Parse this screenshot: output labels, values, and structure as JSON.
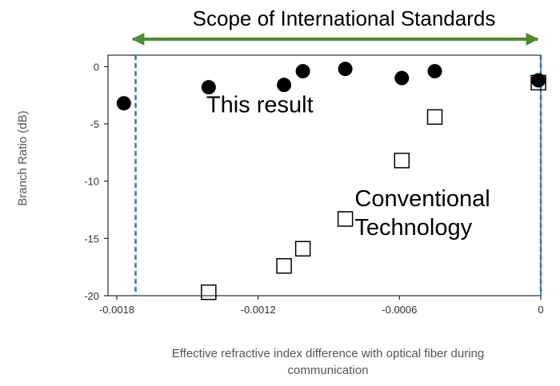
{
  "chart_data": {
    "type": "scatter",
    "banner": "Scope of International Standards",
    "ylabel": "Branch Ratio (dB)",
    "xlabel_lines": [
      "Effective refractive index difference with optical fiber during",
      "communication"
    ],
    "xlim": [
      -0.0018,
      0
    ],
    "ylim": [
      -20,
      1
    ],
    "xticks": [
      {
        "value": -0.0018,
        "label": "-0.0018"
      },
      {
        "value": -0.0012,
        "label": "-0.0012"
      },
      {
        "value": -0.0006,
        "label": "-0.0006"
      },
      {
        "value": 0,
        "label": "0"
      }
    ],
    "yticks": [
      {
        "value": 0,
        "label": "0"
      },
      {
        "value": -5,
        "label": "-5"
      },
      {
        "value": -10,
        "label": "-10"
      },
      {
        "value": -15,
        "label": "-15"
      },
      {
        "value": -20,
        "label": "-20"
      }
    ],
    "scope_lines_x": [
      -0.00172,
      0
    ],
    "scope_color": "#2e74b5",
    "arrow_color": "#4e8a2e",
    "annotations": [
      {
        "text_lines": [
          "This result"
        ],
        "x": -0.00142,
        "y": -4.0
      },
      {
        "text_lines": [
          "Conventional",
          "Technology"
        ],
        "x": -0.00079,
        "y": -12.2
      }
    ],
    "series": [
      {
        "marker": "filled-circle",
        "color": "#000000",
        "points": [
          {
            "x": -0.00177,
            "y": -3.2
          },
          {
            "x": -0.00141,
            "y": -1.8
          },
          {
            "x": -0.00109,
            "y": -1.6
          },
          {
            "x": -0.00101,
            "y": -0.4
          },
          {
            "x": -0.00083,
            "y": -0.2
          },
          {
            "x": -0.00059,
            "y": -1.0
          },
          {
            "x": -0.00045,
            "y": -0.4
          },
          {
            "x": -1e-05,
            "y": -1.2
          }
        ]
      },
      {
        "marker": "open-square",
        "color": "#000000",
        "points": [
          {
            "x": -0.00141,
            "y": -19.7
          },
          {
            "x": -0.00109,
            "y": -17.4
          },
          {
            "x": -0.00101,
            "y": -15.9
          },
          {
            "x": -0.00083,
            "y": -13.3
          },
          {
            "x": -0.00059,
            "y": -8.2
          },
          {
            "x": -0.00045,
            "y": -4.4
          },
          {
            "x": -1e-05,
            "y": -1.4
          }
        ]
      }
    ]
  }
}
